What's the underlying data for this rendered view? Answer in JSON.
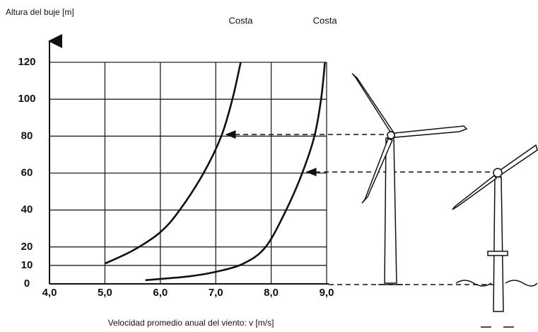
{
  "chart_data": {
    "type": "line",
    "y_label": "Altura del buje [m]",
    "x_label": "Velocidad promedio anual del viento: v [m/s]",
    "xlim": [
      4,
      9
    ],
    "ylim": [
      0,
      120
    ],
    "xticks": [
      {
        "value": 4,
        "label": "4,0"
      },
      {
        "value": 5,
        "label": "5,0"
      },
      {
        "value": 6,
        "label": "6,0"
      },
      {
        "value": 7,
        "label": "7,0"
      },
      {
        "value": 8,
        "label": "8,0"
      },
      {
        "value": 9,
        "label": "9,0"
      }
    ],
    "yticks": [
      0,
      10,
      20,
      40,
      60,
      80,
      100,
      120
    ],
    "grid": true,
    "series": [
      {
        "name": "Costa",
        "color": "#111111",
        "x": [
          5.0,
          5.5,
          6.0,
          6.35,
          6.78,
          7.1,
          7.3,
          7.45
        ],
        "values": [
          11,
          18,
          28,
          40,
          60,
          80,
          100,
          120
        ]
      },
      {
        "name": "Costa",
        "color": "#111111",
        "x": [
          5.73,
          6.5,
          7.0,
          7.5,
          7.9,
          8.27,
          8.56,
          8.78,
          8.9,
          8.97
        ],
        "values": [
          2,
          4,
          6.5,
          11,
          20,
          40,
          60,
          80,
          100,
          120
        ]
      }
    ]
  }
}
